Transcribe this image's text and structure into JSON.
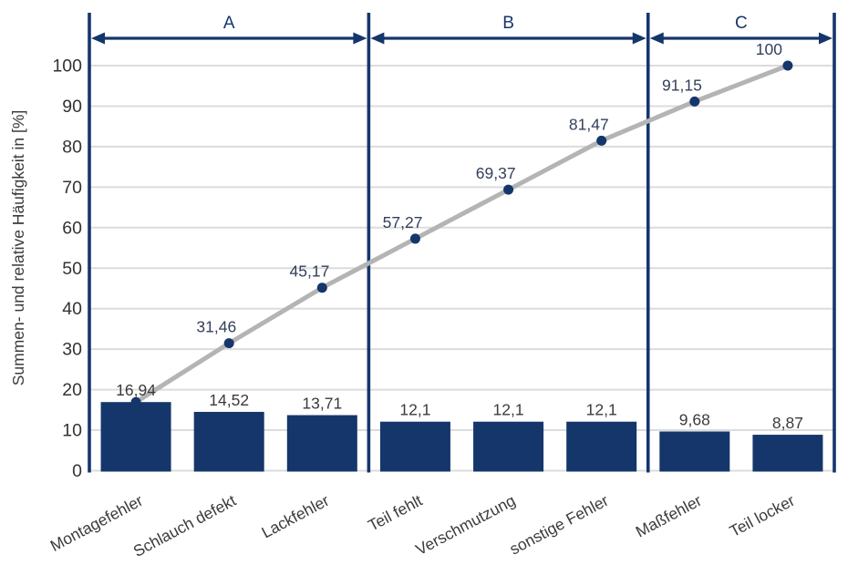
{
  "chart_data": {
    "type": "bar",
    "subtype": "pareto-with-cumulative-line",
    "title": "",
    "xlabel": "",
    "ylabel": "Summen- und relative Häufigkeit in [%]",
    "ylim": [
      0,
      100
    ],
    "yticks": [
      0,
      10,
      20,
      30,
      40,
      50,
      60,
      70,
      80,
      90,
      100
    ],
    "grid": "horizontal",
    "decimal_separator": ",",
    "categories": [
      "Montagefehler",
      "Schlauch defekt",
      "Lackfehler",
      "Teil fehlt",
      "Verschmutzung",
      "sonstige Fehler",
      "Maßfehler",
      "Teil locker"
    ],
    "series": [
      {
        "name": "relative Häufigkeit",
        "type": "bar",
        "values": [
          16.94,
          14.52,
          13.71,
          12.1,
          12.1,
          12.1,
          9.68,
          8.87
        ],
        "labels": [
          "16,94",
          "14,52",
          "13,71",
          "12,1",
          "12,1",
          "12,1",
          "9,68",
          "8,87"
        ]
      },
      {
        "name": "Summenhäufigkeit",
        "type": "line",
        "values": [
          16.94,
          31.46,
          45.17,
          57.27,
          69.37,
          81.47,
          91.15,
          100
        ],
        "labels": [
          "16,94",
          "31,46",
          "45,17",
          "57,27",
          "69,37",
          "81,47",
          "91,15",
          "100"
        ],
        "first_label_shared_with_bar": true
      }
    ],
    "sections": [
      {
        "label": "A",
        "from": 0,
        "to": 3
      },
      {
        "label": "B",
        "from": 3,
        "to": 6
      },
      {
        "label": "C",
        "from": 6,
        "to": 8
      }
    ],
    "colors": {
      "bar": "#15366b",
      "marker": "#15366b",
      "axis": "#15366b",
      "arrow": "#15366b",
      "section_label": "#15366b",
      "line": "#b4b4b4",
      "grid": "#dcdcdc",
      "tick_text": "#333333",
      "bar_label_text": "#3b3b3b",
      "cum_label_text": "#333f5c",
      "category_text": "#3b3b3b",
      "ylabel_text": "#3b3b3b"
    }
  }
}
